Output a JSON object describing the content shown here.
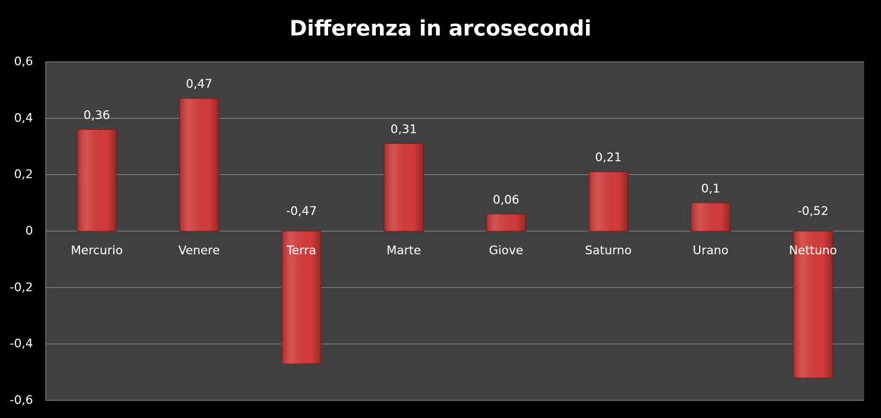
{
  "chart_data": {
    "type": "bar",
    "title": "Differenza in arcosecondi",
    "categories": [
      "Mercurio",
      "Venere",
      "Terra",
      "Marte",
      "Giove",
      "Saturno",
      "Urano",
      "Nettuno"
    ],
    "values": [
      0.36,
      0.47,
      -0.47,
      0.31,
      0.06,
      0.21,
      0.1,
      -0.52
    ],
    "value_labels": [
      "0,36",
      "0,47",
      "-0,47",
      "0,31",
      "0,06",
      "0,21",
      "0,1",
      "-0,52"
    ],
    "color": "#d23b3b",
    "ylim": [
      -0.6,
      0.6
    ],
    "yticks": [
      {
        "value": -0.6,
        "label": "-0,6"
      },
      {
        "value": -0.4,
        "label": "-0,4"
      },
      {
        "value": -0.2,
        "label": "-0,2"
      },
      0,
      {
        "value": 0.2,
        "label": "0,2"
      },
      {
        "value": 0.4,
        "label": "0,4"
      },
      {
        "value": 0.6,
        "label": "0,6"
      }
    ],
    "grid": true
  }
}
